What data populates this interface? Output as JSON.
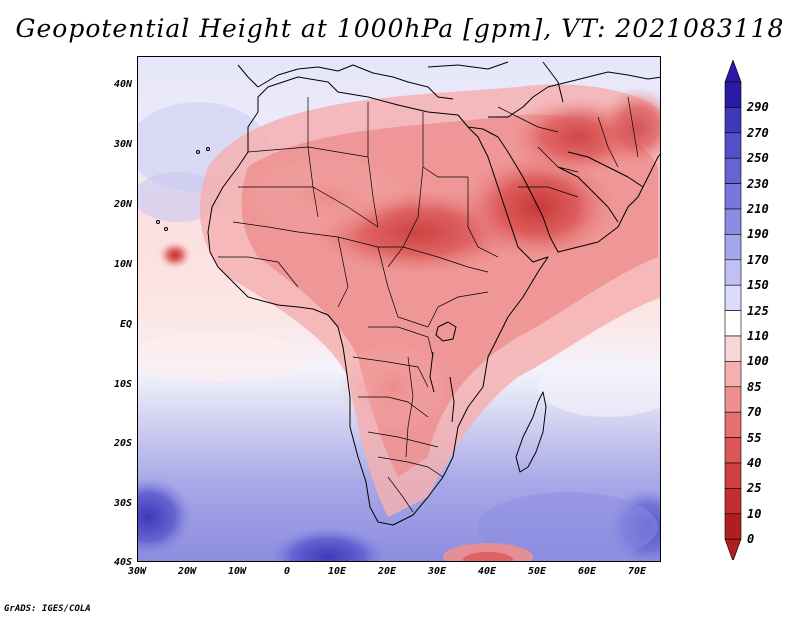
{
  "title": "Geopotential Height at 1000hPa [gpm], VT: 2021083118",
  "credit": "GrADS: IGES/COLA",
  "map": {
    "region": "Africa and Middle East",
    "lat_labels": [
      "40N",
      "30N",
      "20N",
      "10N",
      "EQ",
      "10S",
      "20S",
      "30S",
      "40S"
    ],
    "lon_labels": [
      "30W",
      "20W",
      "10W",
      "0",
      "10E",
      "20E",
      "30E",
      "40E",
      "50E",
      "60E",
      "70E"
    ]
  },
  "colorbar": {
    "labels": [
      "290",
      "270",
      "250",
      "230",
      "210",
      "190",
      "170",
      "150",
      "125",
      "110",
      "100",
      "85",
      "70",
      "55",
      "40",
      "25",
      "10",
      "0"
    ],
    "colors": [
      "#2b1aa8",
      "#3d3ab8",
      "#5050c8",
      "#6464d2",
      "#7878dc",
      "#8c8ce4",
      "#a6a6ec",
      "#c0c0f4",
      "#dcdcfa",
      "#ffffff",
      "#fad6d6",
      "#f4b0b0",
      "#ee8e8e",
      "#e67070",
      "#dc5656",
      "#d04040",
      "#c42e2e",
      "#b01e1e"
    ]
  }
}
